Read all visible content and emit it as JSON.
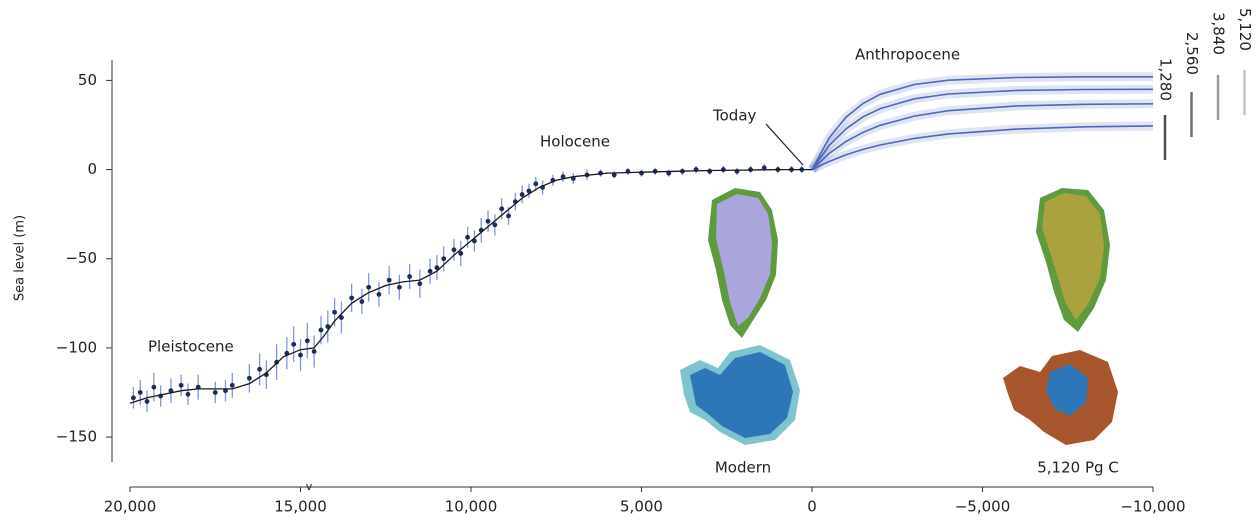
{
  "chart_data": {
    "type": "line",
    "y_label": "Sea level (m)",
    "xlim": [
      20000,
      -10000
    ],
    "ylim": [
      -178,
      62
    ],
    "xticks": [
      {
        "value": 20000,
        "label": "20,000"
      },
      {
        "value": 15000,
        "label": "15,000"
      },
      {
        "value": 10000,
        "label": "10,000"
      },
      {
        "value": 5000,
        "label": "5,000"
      },
      0,
      {
        "value": -5000,
        "label": "−5,000"
      },
      {
        "value": -10000,
        "label": "−10,000"
      }
    ],
    "yticks": [
      50,
      0,
      {
        "value": -50,
        "label": "−50"
      },
      {
        "value": -100,
        "label": "−100"
      },
      {
        "value": -150,
        "label": "−150"
      }
    ],
    "annotations": [
      "Pleistocene",
      "Holocene",
      "Today",
      "Anthropocene",
      "Modern",
      "5,120 Pg C",
      "v"
    ],
    "fit": {
      "color": "#1a1a1a",
      "x": [
        20000,
        19500,
        19000,
        18500,
        18000,
        17500,
        17000,
        16500,
        16000,
        15500,
        15000,
        14600,
        14300,
        14000,
        13500,
        13000,
        12500,
        12000,
        11500,
        11000,
        10500,
        10000,
        9500,
        9000,
        8500,
        8000,
        7500,
        7000,
        6000,
        5000,
        4000,
        3000,
        2000,
        1000,
        0
      ],
      "values": [
        -131,
        -128,
        -126,
        -124,
        -123,
        -123,
        -123,
        -120,
        -114,
        -105,
        -101,
        -100,
        -93,
        -85,
        -75,
        -69,
        -65,
        -63,
        -62,
        -57,
        -48,
        -40,
        -32,
        -24,
        -16,
        -10,
        -6,
        -4,
        -2,
        -1.5,
        -1,
        -0.5,
        -0.3,
        0,
        0
      ]
    },
    "observations": {
      "color": "#1c2a5c",
      "error_color": "#7b98dc",
      "x": [
        19900,
        19700,
        19500,
        19300,
        19100,
        18800,
        18500,
        18300,
        18000,
        17500,
        17200,
        17000,
        16500,
        16200,
        16000,
        15700,
        15400,
        15200,
        15000,
        14800,
        14600,
        14400,
        14200,
        14000,
        13800,
        13500,
        13200,
        13000,
        12700,
        12400,
        12100,
        11800,
        11500,
        11200,
        11000,
        10800,
        10500,
        10300,
        10100,
        9900,
        9700,
        9500,
        9300,
        9100,
        8900,
        8700,
        8500,
        8300,
        8100,
        7900,
        7600,
        7300,
        7000,
        6600,
        6200,
        5800,
        5400,
        5000,
        4600,
        4200,
        3800,
        3400,
        3000,
        2600,
        2200,
        1800,
        1400,
        1000,
        600,
        300
      ],
      "values": [
        -128,
        -125,
        -130,
        -122,
        -127,
        -124,
        -121,
        -126,
        -122,
        -125,
        -124,
        -121,
        -117,
        -112,
        -115,
        -108,
        -103,
        -98,
        -104,
        -96,
        -102,
        -90,
        -88,
        -80,
        -83,
        -72,
        -74,
        -66,
        -70,
        -62,
        -66,
        -60,
        -64,
        -57,
        -55,
        -50,
        -45,
        -47,
        -38,
        -40,
        -34,
        -29,
        -31,
        -22,
        -26,
        -18,
        -14,
        -12,
        -8,
        -10,
        -6,
        -4,
        -5,
        -3,
        -2,
        -3,
        -1,
        -2,
        -1,
        -2,
        -1,
        0,
        -1,
        0,
        -1,
        0,
        1,
        0,
        0,
        0
      ],
      "errors": [
        6,
        7,
        6,
        8,
        6,
        7,
        6,
        6,
        7,
        6,
        6,
        7,
        8,
        9,
        8,
        10,
        9,
        10,
        9,
        10,
        9,
        8,
        9,
        8,
        9,
        8,
        7,
        8,
        7,
        8,
        7,
        7,
        8,
        7,
        7,
        7,
        6,
        7,
        6,
        6,
        7,
        6,
        6,
        6,
        5,
        5,
        5,
        4,
        4,
        4,
        3,
        3,
        3,
        3,
        2,
        2,
        2,
        2,
        2,
        2,
        2,
        2,
        2,
        2,
        2,
        2,
        2,
        2,
        2,
        2
      ]
    },
    "future_x": [
      0,
      -500,
      -1000,
      -1500,
      -2000,
      -3000,
      -4000,
      -6000,
      -8000,
      -10000
    ],
    "series": [
      {
        "name": "1,280",
        "color": "#4f67b8",
        "legend_color": "#4d4d4d",
        "values": [
          0,
          4.5,
          8.3,
          11.3,
          13.8,
          17.5,
          20.0,
          22.7,
          24.0,
          24.5
        ]
      },
      {
        "name": "2,560",
        "color": "#4f67b8",
        "legend_color": "#707070",
        "values": [
          0,
          9.0,
          15.8,
          20.9,
          24.8,
          30.0,
          33.0,
          35.7,
          36.6,
          36.9
        ]
      },
      {
        "name": "3,840",
        "color": "#4f67b8",
        "legend_color": "#9a9a9a",
        "values": [
          0,
          13.5,
          22.9,
          29.6,
          34.2,
          39.7,
          42.4,
          44.4,
          44.9,
          45.0
        ]
      },
      {
        "name": "5,120",
        "color": "#4f67b8",
        "legend_color": "#c4c4c4",
        "values": [
          0,
          17.7,
          29.4,
          37.1,
          42.2,
          47.7,
          50.1,
          51.6,
          52.0,
          52.0
        ]
      }
    ]
  }
}
